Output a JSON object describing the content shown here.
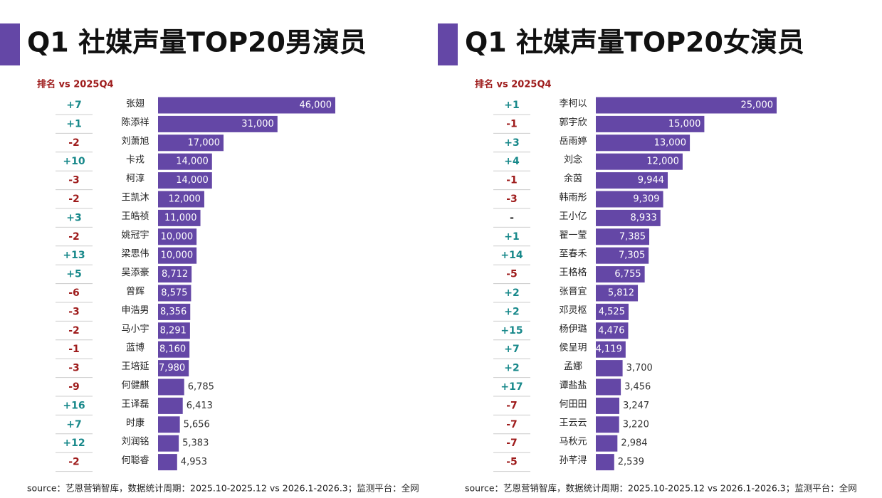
{
  "chart_data": [
    {
      "type": "bar",
      "title": "Q1 社媒声量TOP20男演员",
      "rank_header": "排名 vs 2025Q4",
      "categories": [
        "张翅",
        "陈添祥",
        "刘萧旭",
        "卡戎",
        "柯淳",
        "王凯沐",
        "王皓祯",
        "姚冠宇",
        "梁思伟",
        "吴添豪",
        "曾辉",
        "申浩男",
        "马小宇",
        "蓝博",
        "王培延",
        "何健麒",
        "王译磊",
        "时康",
        "刘润铭",
        "何聪睿"
      ],
      "values": [
        46000,
        31000,
        17000,
        14000,
        14000,
        12000,
        11000,
        10000,
        10000,
        8712,
        8575,
        8356,
        8291,
        8160,
        7980,
        6785,
        6413,
        5656,
        5383,
        4953
      ],
      "value_labels": [
        "46,000",
        "31,000",
        "17,000",
        "14,000",
        "14,000",
        "12,000",
        "11,000",
        "10,000",
        "10,000",
        "8,712",
        "8,575",
        "8,356",
        "8,291",
        "8,160",
        "7,980",
        "6,785",
        "6,413",
        "5,656",
        "5,383",
        "4,953"
      ],
      "rank_change": [
        "+7",
        "+1",
        "-2",
        "+10",
        "-3",
        "-2",
        "+3",
        "-2",
        "+13",
        "+5",
        "-6",
        "-3",
        "-2",
        "-1",
        "-3",
        "-9",
        "+16",
        "+7",
        "+12",
        "-2"
      ],
      "color": "#6447a6",
      "up_color": "#17888a",
      "down_color": "#9e1b1b",
      "source": "source：艺恩营销智库，数据统计周期：2025.10-2025.12 vs 2026.1-2026.3；监测平台：全网"
    },
    {
      "type": "bar",
      "title": "Q1 社媒声量TOP20女演员",
      "rank_header": "排名 vs 2025Q4",
      "categories": [
        "李柯以",
        "郭宇欣",
        "岳雨婷",
        "刘念",
        "余茵",
        "韩雨彤",
        "王小亿",
        "翟一莹",
        "至春禾",
        "王格格",
        "张晋宜",
        "邓灵枢",
        "杨伊璐",
        "侯呈玥",
        "孟娜",
        "谭盐盐",
        "何田田",
        "王云云",
        "马秋元",
        "孙芊浔"
      ],
      "values": [
        25000,
        15000,
        13000,
        12000,
        9944,
        9309,
        8933,
        7385,
        7305,
        6755,
        5812,
        4525,
        4476,
        4119,
        3700,
        3456,
        3247,
        3220,
        2984,
        2539
      ],
      "value_labels": [
        "25,000",
        "15,000",
        "13,000",
        "12,000",
        "9,944",
        "9,309",
        "8,933",
        "7,385",
        "7,305",
        "6,755",
        "5,812",
        "4,525",
        "4,476",
        "4,119",
        "3,700",
        "3,456",
        "3,247",
        "3,220",
        "2,984",
        "2,539"
      ],
      "rank_change": [
        "+1",
        "-1",
        "+3",
        "+4",
        "-1",
        "-3",
        "-",
        "+1",
        "+14",
        "-5",
        "+2",
        "+2",
        "+15",
        "+7",
        "+2",
        "+17",
        "-7",
        "-7",
        "-7",
        "-5"
      ],
      "color": "#6447a6",
      "up_color": "#17888a",
      "down_color": "#9e1b1b",
      "source": "source：艺恩营销智库，数据统计周期：2025.10-2025.12 vs 2026.1-2026.3；监测平台：全网"
    }
  ]
}
